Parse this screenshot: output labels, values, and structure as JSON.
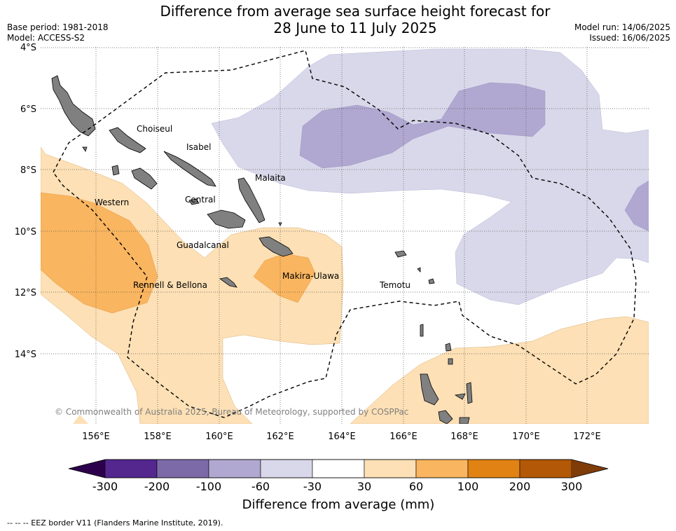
{
  "title": {
    "line1": "Difference from average sea surface height forecast for",
    "line2": "28 June to 11 July 2025"
  },
  "meta_left": {
    "base_period": "Base period: 1981-2018",
    "model": "Model: ACCESS-S2"
  },
  "meta_right": {
    "model_run": "Model run: 14/06/2025",
    "issued": "Issued: 16/06/2025"
  },
  "map": {
    "lat_labels": [
      "4°S",
      "6°S",
      "8°S",
      "10°S",
      "12°S",
      "14°S"
    ],
    "lon_labels": [
      "156°E",
      "158°E",
      "160°E",
      "162°E",
      "164°E",
      "166°E",
      "168°E",
      "170°E",
      "172°E"
    ],
    "region_labels": [
      "Choiseul",
      "Isabel",
      "Malaita",
      "Western",
      "Central",
      "Guadalcanal",
      "Makira-Ulawa",
      "Rennell & Bellona",
      "Temotu"
    ],
    "copyright": "© Commonwealth of Australia 2025, Bureau of Meteorology, supported by COSPPac"
  },
  "colorbar": {
    "ticks": [
      "-300",
      "-200",
      "-100",
      "-60",
      "-30",
      "30",
      "60",
      "100",
      "200",
      "300"
    ],
    "colors": [
      "#54278f",
      "#7c6aa8",
      "#b0a8d0",
      "#d9d8ea",
      "#ffffff",
      "#fde0b5",
      "#f9b55f",
      "#e08214",
      "#b35806"
    ],
    "extend_low": "#2d004b",
    "extend_high": "#7f3b08",
    "label": "Difference from average (mm)"
  },
  "footer": {
    "legend": "--  --  -- EEZ border V11 (Flanders Marine Institute, 2019)."
  }
}
